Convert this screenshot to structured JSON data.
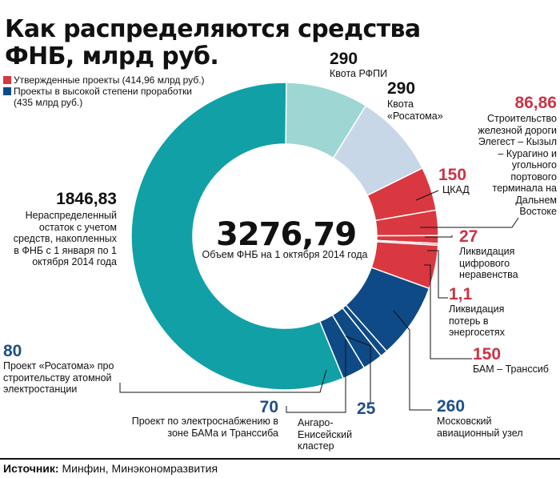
{
  "title": "Как распределяются средства ФНБ, млрд руб.",
  "legend": {
    "approved": "Утвержденные проекты (414,96 млрд руб.)",
    "advanced_line1": "Проекты в высокой степени проработки",
    "advanced_line2": "(435 млрд руб.)"
  },
  "center": {
    "total": "3276,79",
    "caption": "Объем ФНБ на 1 октября 2014 года"
  },
  "source": {
    "label": "Источник:",
    "text": "Минфин, Минэкономразвития"
  },
  "colors": {
    "teal": "#11a0a6",
    "light_teal": "#9ed6d4",
    "light_blue": "#c7d7e8",
    "red": "#d93841",
    "navy": "#0d4a86",
    "red_text": "#cc3344",
    "blue_text": "#1e4f86"
  },
  "chart_data": {
    "type": "donut",
    "total": 3276.79,
    "unit": "млрд руб.",
    "slices": [
      {
        "value": 290,
        "value_label": "290",
        "label": "Квота РФПИ",
        "group": "fund"
      },
      {
        "value": 290,
        "value_label": "290",
        "label": "Квота «Росатома»",
        "group": "fund"
      },
      {
        "value": 150,
        "value_label": "150",
        "label": "ЦКАД",
        "group": "approved"
      },
      {
        "value": 86.86,
        "value_label": "86,86",
        "label": "Строительство железной дороги Элегест – Кызыл – Курагино и угольного портового терминала на Дальнем Востоке",
        "group": "approved"
      },
      {
        "value": 27,
        "value_label": "27",
        "label": "Ликвидация цифрового неравенства",
        "group": "approved"
      },
      {
        "value": 1.1,
        "value_label": "1,1",
        "label": "Ликвидация потерь в энергосетях",
        "group": "approved"
      },
      {
        "value": 150,
        "value_label": "150",
        "label": "БАМ – Транссиб",
        "group": "approved"
      },
      {
        "value": 260,
        "value_label": "260",
        "label": "Московский авиационный узел",
        "group": "advanced"
      },
      {
        "value": 25,
        "value_label": "25",
        "label": "Ангаро-Енисейский кластер",
        "group": "advanced"
      },
      {
        "value": 70,
        "value_label": "70",
        "label": "Проект по электроснабжению в зоне БАМа и Транссиба",
        "group": "advanced"
      },
      {
        "value": 80,
        "value_label": "80",
        "label": "Проект «Росатома» про строительству атомной электростанции",
        "group": "advanced"
      },
      {
        "value": 1846.83,
        "value_label": "1846,83",
        "label": "Нераспределенный остаток с учетом средств, накопленных в ФНБ с 1 января по 1 октября 2014 года",
        "group": "unallocated"
      }
    ]
  }
}
